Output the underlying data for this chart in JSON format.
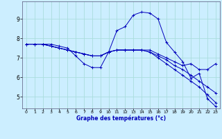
{
  "xlabel": "Graphe des températures (°c)",
  "background_color": "#cceeff",
  "grid_color": "#aadddd",
  "line_color": "#0000bb",
  "xlim": [
    -0.5,
    23.5
  ],
  "ylim": [
    4.4,
    9.9
  ],
  "yticks": [
    5,
    6,
    7,
    8,
    9
  ],
  "xticks": [
    0,
    1,
    2,
    3,
    4,
    5,
    6,
    7,
    8,
    9,
    10,
    11,
    12,
    13,
    14,
    15,
    16,
    17,
    18,
    19,
    20,
    21,
    22,
    23
  ],
  "lines": [
    {
      "x": [
        0,
        1,
        2,
        3,
        4,
        5,
        6,
        7,
        8,
        9,
        10,
        11,
        12,
        13,
        14,
        15,
        16,
        17,
        18,
        19,
        20,
        21,
        22,
        23
      ],
      "y": [
        7.7,
        7.7,
        7.7,
        7.7,
        7.6,
        7.5,
        7.1,
        6.7,
        6.5,
        6.5,
        7.3,
        8.4,
        8.6,
        9.2,
        9.35,
        9.3,
        9.0,
        7.8,
        7.3,
        6.8,
        5.95,
        6.2,
        4.9,
        4.5
      ]
    },
    {
      "x": [
        0,
        1,
        2,
        3,
        4,
        5,
        6,
        7,
        8,
        9,
        10,
        11,
        12,
        13,
        14,
        15,
        16,
        17,
        18,
        19,
        20,
        21,
        22,
        23
      ],
      "y": [
        7.7,
        7.7,
        7.7,
        7.6,
        7.5,
        7.4,
        7.3,
        7.2,
        7.1,
        7.1,
        7.3,
        7.4,
        7.4,
        7.4,
        7.4,
        7.4,
        7.2,
        7.0,
        6.8,
        6.6,
        6.7,
        6.4,
        6.4,
        6.7
      ]
    },
    {
      "x": [
        0,
        1,
        2,
        3,
        4,
        5,
        6,
        7,
        8,
        9,
        10,
        11,
        12,
        13,
        14,
        15,
        16,
        17,
        18,
        19,
        20,
        21,
        22,
        23
      ],
      "y": [
        7.7,
        7.7,
        7.7,
        7.6,
        7.5,
        7.4,
        7.3,
        7.2,
        7.1,
        7.1,
        7.3,
        7.4,
        7.4,
        7.4,
        7.4,
        7.3,
        7.1,
        6.9,
        6.6,
        6.4,
        6.1,
        5.8,
        5.5,
        5.2
      ]
    },
    {
      "x": [
        0,
        1,
        2,
        3,
        4,
        5,
        6,
        7,
        8,
        9,
        10,
        11,
        12,
        13,
        14,
        15,
        16,
        17,
        18,
        19,
        20,
        21,
        22,
        23
      ],
      "y": [
        7.7,
        7.7,
        7.7,
        7.6,
        7.5,
        7.4,
        7.3,
        7.2,
        7.1,
        7.1,
        7.3,
        7.4,
        7.4,
        7.4,
        7.4,
        7.3,
        7.0,
        6.7,
        6.4,
        6.1,
        5.8,
        5.5,
        5.1,
        4.7
      ]
    }
  ]
}
